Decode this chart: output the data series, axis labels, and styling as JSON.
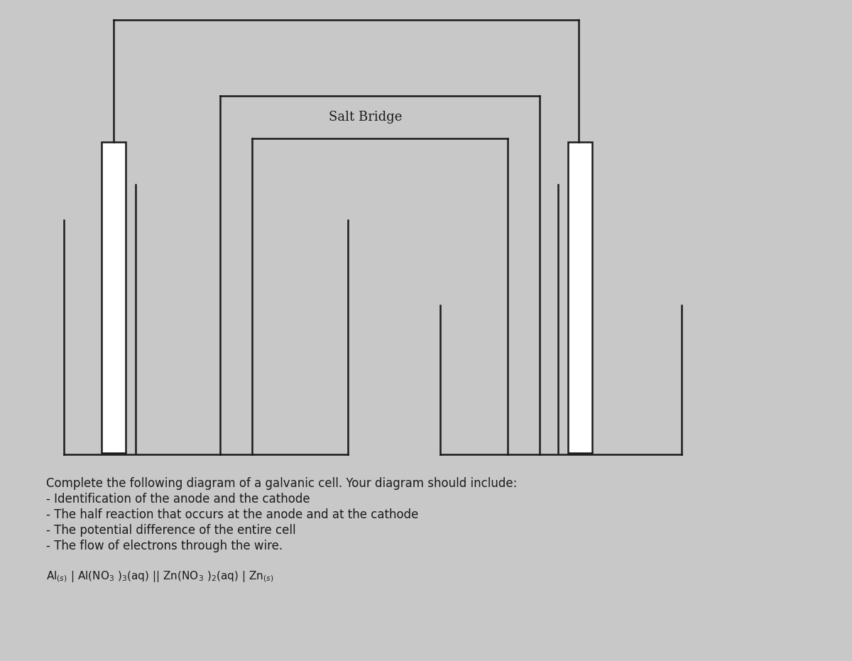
{
  "background_color": "#c8c8c8",
  "line_color": "#1a1a1a",
  "text_color": "#1a1a1a",
  "salt_bridge_label": "Salt Bridge",
  "salt_bridge_label_fontsize": 13,
  "instructions": [
    "Complete the following diagram of a galvanic cell. Your diagram should include:",
    "- Identification of the anode and the cathode",
    "- The half reaction that occurs at the anode and at the cathode",
    "- The potential difference of the entire cell",
    "- The flow of electrons through the wire."
  ],
  "instructions_fontsize": 12,
  "notation_fontsize": 11,
  "fig_width": 12.0,
  "fig_height": 9.31,
  "dpi": 100
}
